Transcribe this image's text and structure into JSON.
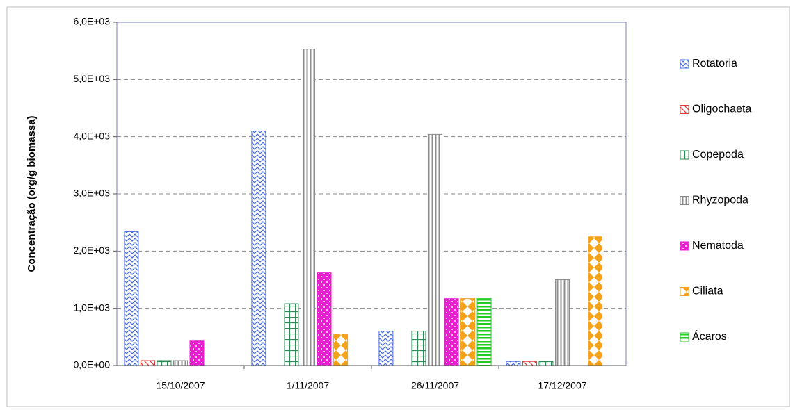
{
  "chart_data": {
    "type": "bar",
    "y_label": "Concentração (org/g biomassa)",
    "categories": [
      "15/10/2007",
      "1/11/2007",
      "26/11/2007",
      "17/12/2007"
    ],
    "series": [
      {
        "name": "Rotatoria",
        "color": "#4a6fe0",
        "values": [
          2340,
          4100,
          600,
          70
        ]
      },
      {
        "name": "Oligochaeta",
        "color": "#e03a3a",
        "values": [
          85,
          0,
          0,
          70
        ]
      },
      {
        "name": "Copepoda",
        "color": "#2e8b57",
        "values": [
          85,
          1080,
          600,
          70
        ]
      },
      {
        "name": "Rhyzopoda",
        "color": "#8c8c8c",
        "values": [
          85,
          5530,
          4040,
          1500
        ]
      },
      {
        "name": "Nematoda",
        "color": "#e81fd0",
        "values": [
          440,
          1620,
          1170,
          0
        ]
      },
      {
        "name": "Ciliata",
        "color": "#f5a21b",
        "values": [
          0,
          550,
          1170,
          2250
        ]
      },
      {
        "name": "Ácaros",
        "color": "#22cc22",
        "values": [
          0,
          0,
          1170,
          0
        ]
      }
    ],
    "ylim": [
      0,
      6000
    ],
    "yticks": [
      {
        "value": 0,
        "label": "0,0E+00"
      },
      {
        "value": 1000,
        "label": "1,0E+03"
      },
      {
        "value": 2000,
        "label": "2,0E+03"
      },
      {
        "value": 3000,
        "label": "3,0E+03"
      },
      {
        "value": 4000,
        "label": "4,0E+03"
      },
      {
        "value": 5000,
        "label": "5,0E+03"
      },
      {
        "value": 6000,
        "label": "6,0E+03"
      }
    ],
    "grid": true,
    "legend": "right"
  }
}
